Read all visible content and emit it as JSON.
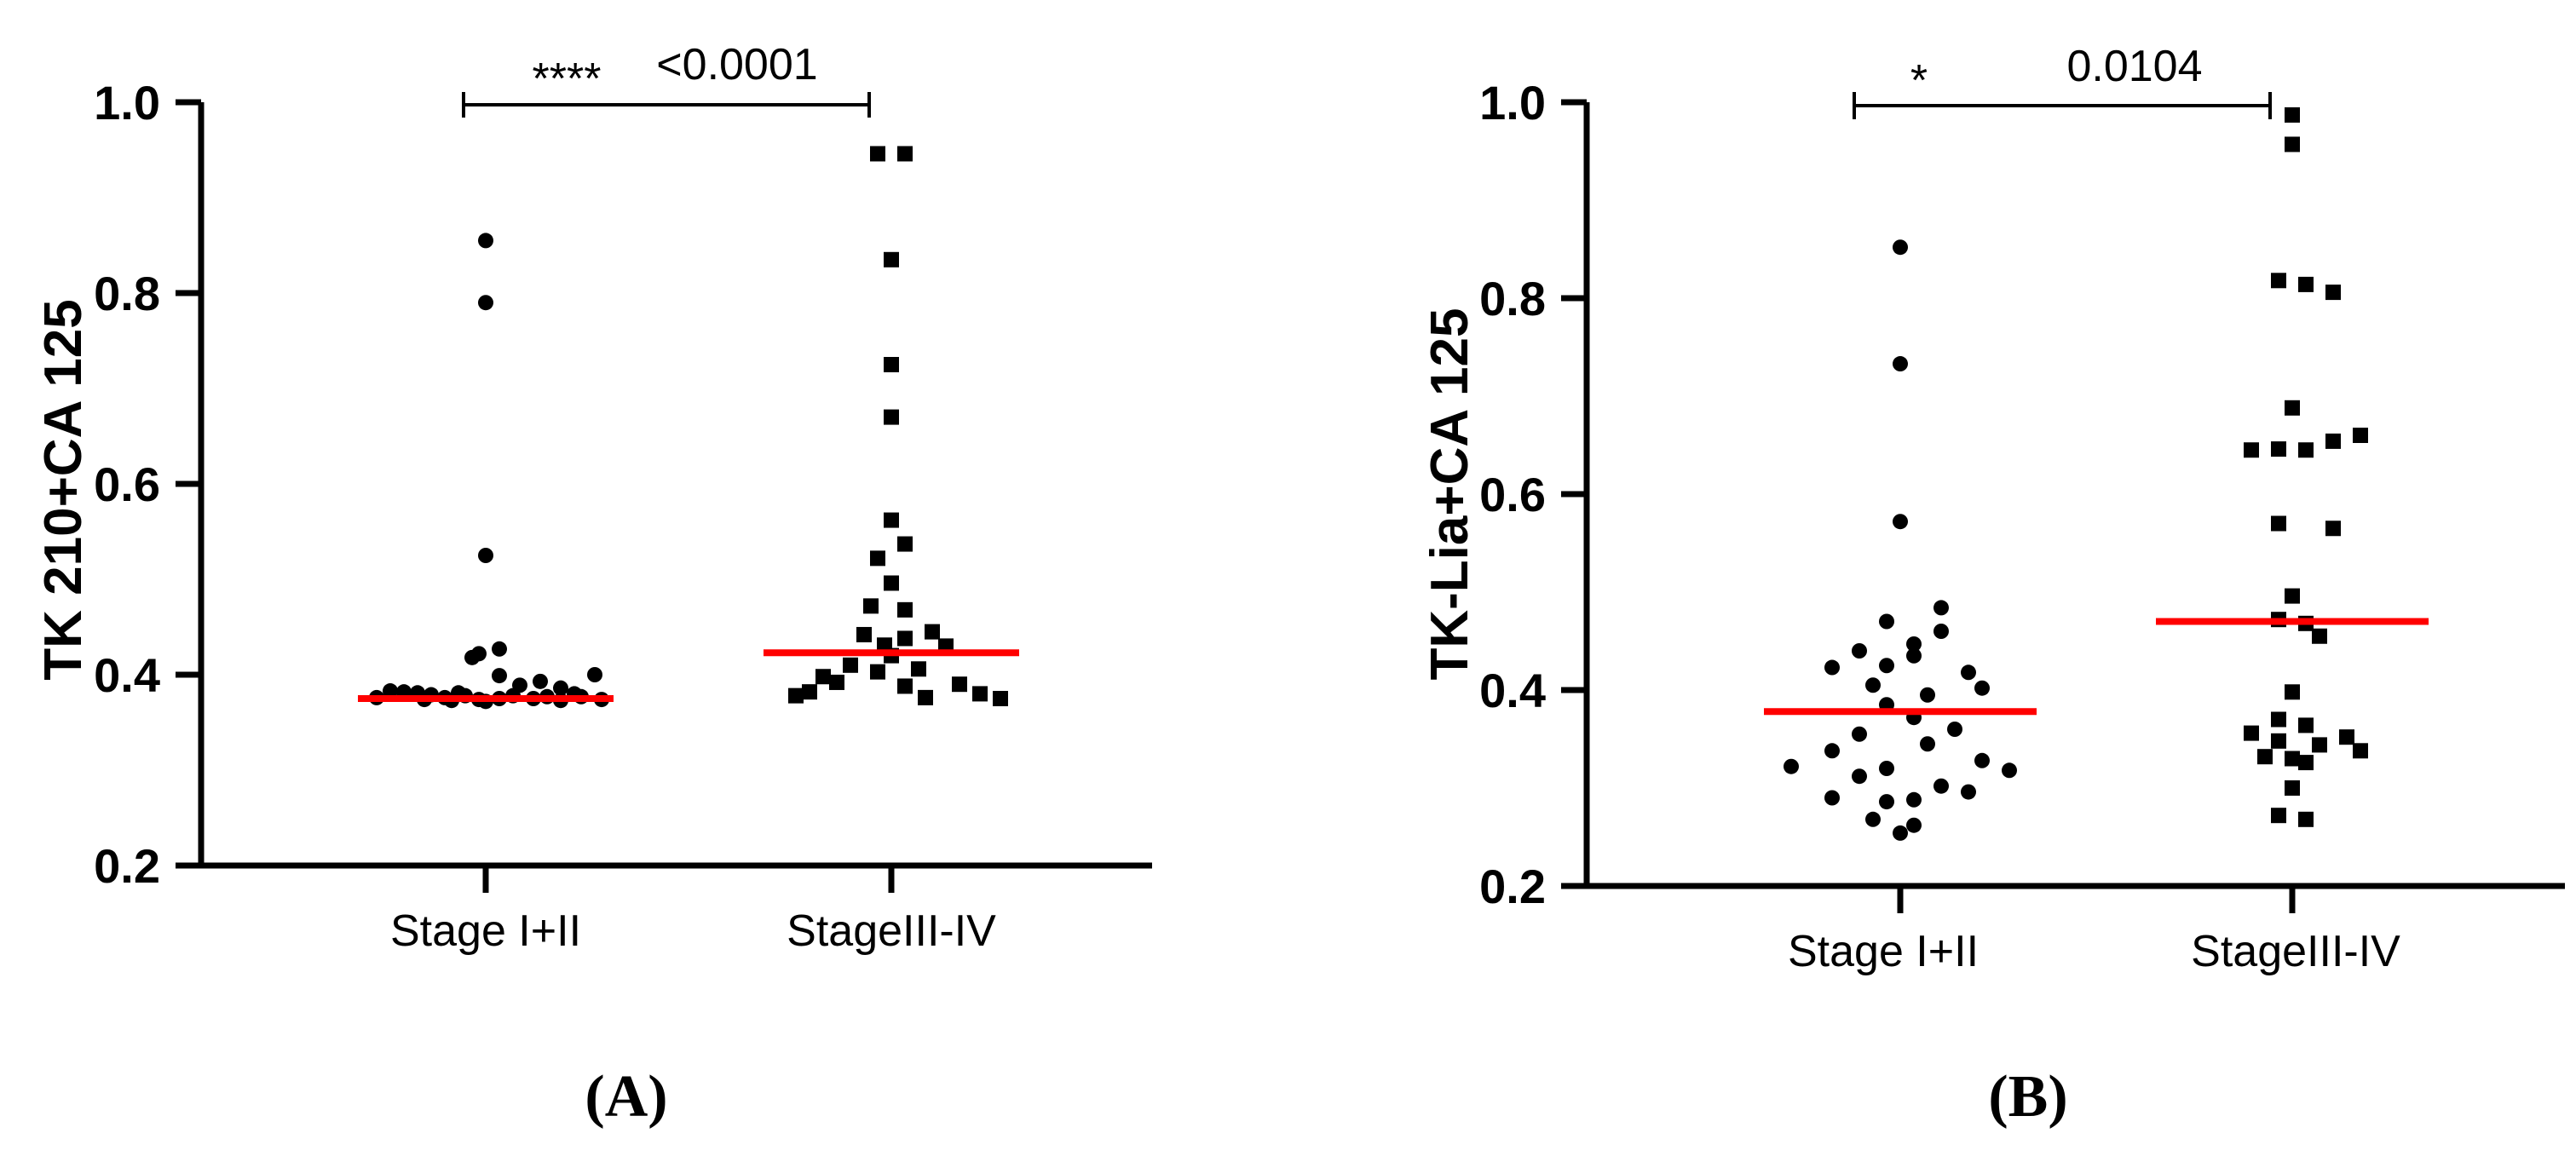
{
  "chart_data": [
    {
      "type": "scatter",
      "panel_label": "(A)",
      "ylabel": "TK 210+CA 125",
      "ylim": [
        0.2,
        1.0
      ],
      "yticks": [
        "0.2",
        "0.4",
        "0.6",
        "0.8",
        "1.0"
      ],
      "categories": [
        "Stage I+II",
        "StageIII-IV"
      ],
      "significance": {
        "stars": "****",
        "p_value": "<0.0001"
      },
      "series": [
        {
          "name": "Stage I+II",
          "marker": "circle",
          "median": 0.375,
          "points": [
            {
              "v": 0.855,
              "o": 0
            },
            {
              "v": 0.79,
              "o": 0
            },
            {
              "v": 0.525,
              "o": 0
            },
            {
              "v": 0.427,
              "o": 1
            },
            {
              "v": 0.422,
              "o": -0.5
            },
            {
              "v": 0.418,
              "o": -1
            },
            {
              "v": 0.4,
              "o": 8
            },
            {
              "v": 0.399,
              "o": 1
            },
            {
              "v": 0.393,
              "o": 4
            },
            {
              "v": 0.389,
              "o": 2.5
            },
            {
              "v": 0.386,
              "o": 5.5
            },
            {
              "v": 0.383,
              "o": -7
            },
            {
              "v": 0.382,
              "o": -6
            },
            {
              "v": 0.381,
              "o": -5
            },
            {
              "v": 0.381,
              "o": -2
            },
            {
              "v": 0.38,
              "o": 6.5
            },
            {
              "v": 0.379,
              "o": -4
            },
            {
              "v": 0.378,
              "o": -1.5
            },
            {
              "v": 0.378,
              "o": 2
            },
            {
              "v": 0.377,
              "o": 4.5
            },
            {
              "v": 0.377,
              "o": 7
            },
            {
              "v": 0.376,
              "o": -8
            },
            {
              "v": 0.376,
              "o": -3
            },
            {
              "v": 0.375,
              "o": 1
            },
            {
              "v": 0.375,
              "o": 3.5
            },
            {
              "v": 0.374,
              "o": -4.5
            },
            {
              "v": 0.374,
              "o": -0.5
            },
            {
              "v": 0.374,
              "o": 8.5
            },
            {
              "v": 0.373,
              "o": -2.5
            },
            {
              "v": 0.373,
              "o": 5.5
            },
            {
              "v": 0.372,
              "o": 0
            }
          ]
        },
        {
          "name": "StageIII-IV",
          "marker": "square",
          "median": 0.423,
          "points": [
            {
              "v": 0.946,
              "o": -1
            },
            {
              "v": 0.946,
              "o": 1
            },
            {
              "v": 0.835,
              "o": 0
            },
            {
              "v": 0.725,
              "o": 0
            },
            {
              "v": 0.67,
              "o": 0
            },
            {
              "v": 0.562,
              "o": 0
            },
            {
              "v": 0.537,
              "o": 1
            },
            {
              "v": 0.522,
              "o": -1
            },
            {
              "v": 0.496,
              "o": 0
            },
            {
              "v": 0.472,
              "o": -1.5
            },
            {
              "v": 0.468,
              "o": 1
            },
            {
              "v": 0.445,
              "o": 3
            },
            {
              "v": 0.442,
              "o": -2
            },
            {
              "v": 0.438,
              "o": 1
            },
            {
              "v": 0.431,
              "o": -0.5
            },
            {
              "v": 0.43,
              "o": 4
            },
            {
              "v": 0.42,
              "o": 0
            },
            {
              "v": 0.41,
              "o": -3
            },
            {
              "v": 0.406,
              "o": 2
            },
            {
              "v": 0.403,
              "o": -1
            },
            {
              "v": 0.398,
              "o": -5
            },
            {
              "v": 0.392,
              "o": -4
            },
            {
              "v": 0.39,
              "o": 5
            },
            {
              "v": 0.388,
              "o": 1
            },
            {
              "v": 0.382,
              "o": -6
            },
            {
              "v": 0.38,
              "o": 6.5
            },
            {
              "v": 0.378,
              "o": -7
            },
            {
              "v": 0.376,
              "o": 2.5
            },
            {
              "v": 0.375,
              "o": 8
            }
          ]
        }
      ]
    },
    {
      "type": "scatter",
      "panel_label": "(B)",
      "ylabel": "TK-Lia+CA 125",
      "ylim": [
        0.2,
        1.0
      ],
      "yticks": [
        "0.2",
        "0.4",
        "0.6",
        "0.8",
        "1.0"
      ],
      "categories": [
        "Stage I+II",
        "StageIII-IV"
      ],
      "significance": {
        "stars": "*",
        "p_value": "0.0104"
      },
      "series": [
        {
          "name": "Stage I+II",
          "marker": "circle",
          "median": 0.378,
          "points": [
            {
              "v": 0.852,
              "o": 0
            },
            {
              "v": 0.733,
              "o": 0
            },
            {
              "v": 0.572,
              "o": 0
            },
            {
              "v": 0.484,
              "o": 3
            },
            {
              "v": 0.47,
              "o": -1
            },
            {
              "v": 0.46,
              "o": 3
            },
            {
              "v": 0.447,
              "o": 1
            },
            {
              "v": 0.44,
              "o": -3
            },
            {
              "v": 0.435,
              "o": 1
            },
            {
              "v": 0.425,
              "o": -1
            },
            {
              "v": 0.423,
              "o": -5
            },
            {
              "v": 0.418,
              "o": 5
            },
            {
              "v": 0.405,
              "o": -2
            },
            {
              "v": 0.402,
              "o": 6
            },
            {
              "v": 0.395,
              "o": 2
            },
            {
              "v": 0.385,
              "o": -1
            },
            {
              "v": 0.372,
              "o": 1
            },
            {
              "v": 0.36,
              "o": 4
            },
            {
              "v": 0.355,
              "o": -3
            },
            {
              "v": 0.345,
              "o": 2
            },
            {
              "v": 0.338,
              "o": -5
            },
            {
              "v": 0.328,
              "o": 6
            },
            {
              "v": 0.322,
              "o": -8
            },
            {
              "v": 0.32,
              "o": -1
            },
            {
              "v": 0.318,
              "o": 8
            },
            {
              "v": 0.312,
              "o": -3
            },
            {
              "v": 0.302,
              "o": 3
            },
            {
              "v": 0.296,
              "o": 5
            },
            {
              "v": 0.29,
              "o": -5
            },
            {
              "v": 0.288,
              "o": 1
            },
            {
              "v": 0.286,
              "o": -1
            },
            {
              "v": 0.268,
              "o": -2
            },
            {
              "v": 0.262,
              "o": 1
            },
            {
              "v": 0.254,
              "o": 0
            }
          ]
        },
        {
          "name": "StageIII-IV",
          "marker": "square",
          "median": 0.47,
          "points": [
            {
              "v": 0.987,
              "o": 0
            },
            {
              "v": 0.957,
              "o": 0
            },
            {
              "v": 0.818,
              "o": -1
            },
            {
              "v": 0.814,
              "o": 1
            },
            {
              "v": 0.806,
              "o": 3
            },
            {
              "v": 0.688,
              "o": 0
            },
            {
              "v": 0.66,
              "o": 5
            },
            {
              "v": 0.654,
              "o": 3
            },
            {
              "v": 0.646,
              "o": -1
            },
            {
              "v": 0.645,
              "o": -3
            },
            {
              "v": 0.645,
              "o": 1
            },
            {
              "v": 0.57,
              "o": -1
            },
            {
              "v": 0.565,
              "o": 3
            },
            {
              "v": 0.496,
              "o": 0
            },
            {
              "v": 0.472,
              "o": -1
            },
            {
              "v": 0.468,
              "o": 1
            },
            {
              "v": 0.455,
              "o": 2
            },
            {
              "v": 0.398,
              "o": 0
            },
            {
              "v": 0.37,
              "o": -1
            },
            {
              "v": 0.364,
              "o": 1
            },
            {
              "v": 0.356,
              "o": -3
            },
            {
              "v": 0.352,
              "o": 4
            },
            {
              "v": 0.348,
              "o": -1
            },
            {
              "v": 0.344,
              "o": 2
            },
            {
              "v": 0.338,
              "o": 5
            },
            {
              "v": 0.332,
              "o": -2
            },
            {
              "v": 0.33,
              "o": 0
            },
            {
              "v": 0.326,
              "o": 1
            },
            {
              "v": 0.3,
              "o": 0
            },
            {
              "v": 0.272,
              "o": -1
            },
            {
              "v": 0.268,
              "o": 1
            }
          ]
        }
      ]
    }
  ]
}
